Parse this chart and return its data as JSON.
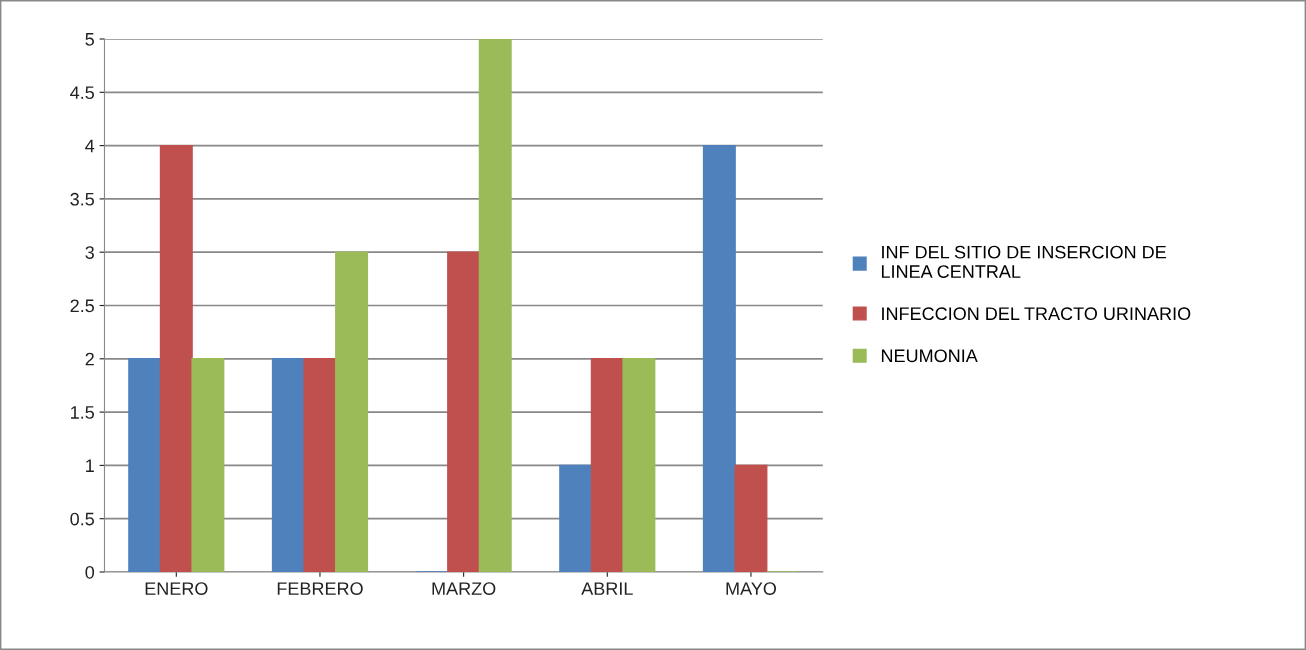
{
  "chart_data": {
    "type": "bar",
    "categories": [
      "ENERO",
      "FEBRERO",
      "MARZO",
      "ABRIL",
      "MAYO"
    ],
    "series": [
      {
        "name": "INF DEL SITIO DE INSERCION DE LINEA CENTRAL",
        "color": "#4f81bd",
        "values": [
          2,
          2,
          0,
          1,
          4
        ]
      },
      {
        "name": "INFECCION DEL TRACTO URINARIO",
        "color": "#c0504d",
        "values": [
          4,
          2,
          3,
          2,
          1
        ]
      },
      {
        "name": "NEUMONIA",
        "color": "#9bbb59",
        "values": [
          2,
          3,
          5,
          2,
          0
        ]
      }
    ],
    "ylim": [
      0,
      5
    ],
    "yticks": [
      0,
      0.5,
      1,
      1.5,
      2,
      2.5,
      3,
      3.5,
      4,
      4.5,
      5
    ],
    "grid": "y",
    "legend": "right"
  }
}
